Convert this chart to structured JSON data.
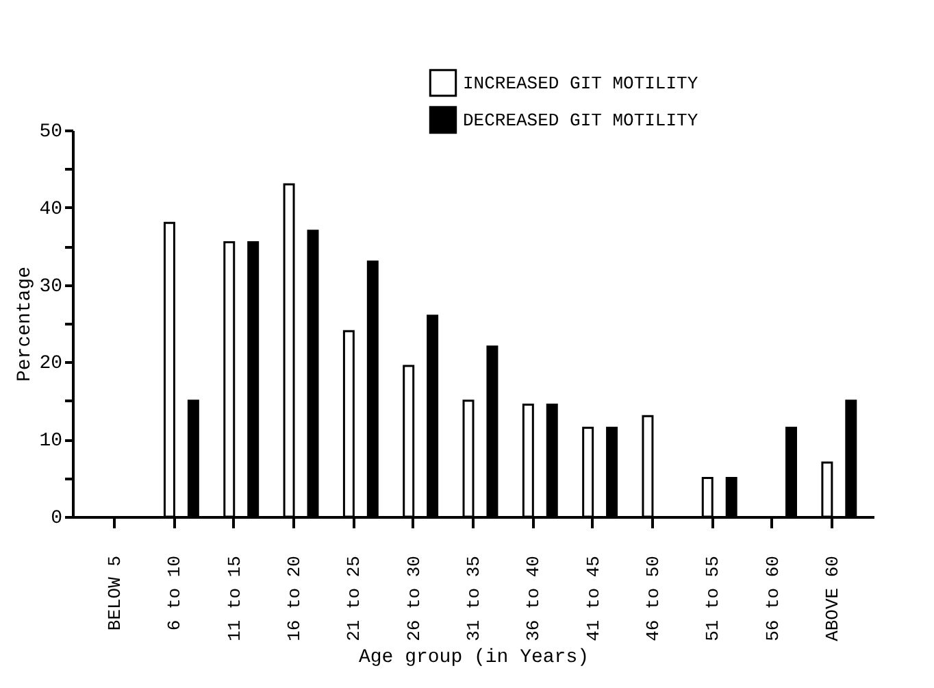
{
  "chart_data": {
    "type": "bar",
    "xlabel": "Age group (in Years)",
    "ylabel": "Percentage",
    "categories": [
      "BELOW 5",
      "6 to 10",
      "11 to 15",
      "16 to 20",
      "21 to 25",
      "26 to 30",
      "31 to 35",
      "36 to 40",
      "41 to 45",
      "46 to 50",
      "51 to 55",
      "56 to 60",
      "ABOVE 60"
    ],
    "series": [
      {
        "name": "INCREASED GIT MOTILITY",
        "color": "#ffffff",
        "values": [
          null,
          38,
          35.5,
          43,
          24,
          19.5,
          15,
          14.5,
          11.5,
          13,
          5,
          null,
          7
        ]
      },
      {
        "name": "DECREASED GIT MOTILITY",
        "color": "#000000",
        "values": [
          null,
          15,
          35.5,
          37,
          33,
          26,
          22,
          14.5,
          11.5,
          null,
          5,
          11.5,
          15
        ]
      }
    ],
    "ylim": [
      0,
      50
    ],
    "yticks": [
      0,
      {
        "value": 5,
        "label": null
      },
      10,
      {
        "value": 15,
        "label": null
      },
      20,
      {
        "value": 25,
        "label": null
      },
      30,
      {
        "value": 35,
        "label": null
      },
      40,
      {
        "value": 45,
        "label": null
      },
      50
    ],
    "grid": false,
    "legend": "top right"
  }
}
